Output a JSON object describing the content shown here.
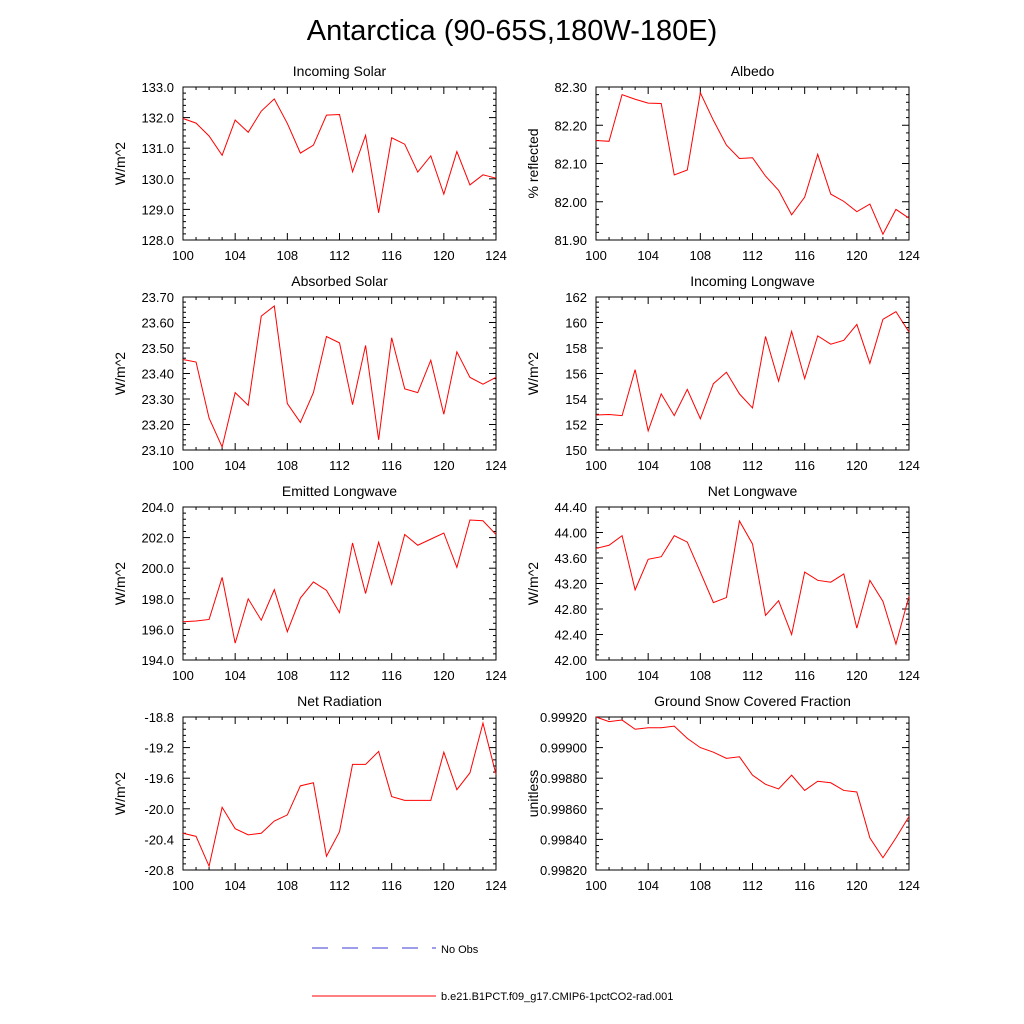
{
  "title": "Antarctica (90-65S,180W-180E)",
  "colors": {
    "series": "#ff0000",
    "obs": "#3b3bd6",
    "axis": "#000000"
  },
  "legend": {
    "obs_label": "No Obs",
    "model_label": "b.e21.B1PCT.f09_g17.CMIP6-1pctCO2-rad.001"
  },
  "chart_data": [
    {
      "type": "line",
      "title": "Incoming Solar",
      "ylabel": "W/m^2",
      "xlim": [
        100,
        124
      ],
      "ylim": [
        128.0,
        133.0
      ],
      "xticks": [
        100,
        104,
        108,
        112,
        116,
        120,
        124
      ],
      "xtick_labels": [
        "100",
        "104",
        "108",
        "112",
        "116",
        "120",
        "124"
      ],
      "yticks": [
        128.0,
        129.0,
        130.0,
        131.0,
        132.0,
        133.0
      ],
      "ytick_labels": [
        "128.0",
        "129.0",
        "130.0",
        "131.0",
        "132.0",
        "133.0"
      ],
      "x": [
        100,
        101,
        102,
        103,
        104,
        105,
        106,
        107,
        108,
        109,
        110,
        111,
        112,
        113,
        114,
        115,
        116,
        117,
        118,
        119,
        120,
        121,
        122,
        123,
        124
      ],
      "series": [
        {
          "name": "b.e21.B1PCT.f09_g17.CMIP6-1pctCO2-rad.001",
          "values": [
            131.97,
            131.82,
            131.4,
            130.77,
            131.92,
            131.52,
            132.21,
            132.61,
            131.81,
            130.84,
            131.1,
            132.08,
            132.1,
            130.23,
            131.42,
            128.89,
            131.34,
            131.13,
            130.22,
            130.75,
            129.5,
            130.89,
            129.8,
            130.13,
            130.02
          ]
        }
      ]
    },
    {
      "type": "line",
      "title": "Albedo",
      "ylabel": "% reflected",
      "xlim": [
        100,
        124
      ],
      "ylim": [
        81.9,
        82.3
      ],
      "xticks": [
        100,
        104,
        108,
        112,
        116,
        120,
        124
      ],
      "xtick_labels": [
        "100",
        "104",
        "108",
        "112",
        "116",
        "120",
        "124"
      ],
      "yticks": [
        81.9,
        82.0,
        82.1,
        82.2,
        82.3
      ],
      "ytick_labels": [
        "81.90",
        "82.00",
        "82.10",
        "82.20",
        "82.30"
      ],
      "x": [
        100,
        101,
        102,
        103,
        104,
        105,
        106,
        107,
        108,
        109,
        110,
        111,
        112,
        113,
        114,
        115,
        116,
        117,
        118,
        119,
        120,
        121,
        122,
        123,
        124
      ],
      "series": [
        {
          "name": "b.e21.B1PCT.f09_g17.CMIP6-1pctCO2-rad.001",
          "values": [
            82.16,
            82.158,
            82.28,
            82.268,
            82.258,
            82.257,
            82.07,
            82.083,
            82.285,
            82.213,
            82.148,
            82.113,
            82.115,
            82.067,
            82.03,
            81.966,
            82.012,
            82.124,
            82.02,
            82.001,
            81.974,
            81.994,
            81.915,
            81.98,
            81.957
          ]
        }
      ]
    },
    {
      "type": "line",
      "title": "Absorbed Solar",
      "ylabel": "W/m^2",
      "xlim": [
        100,
        124
      ],
      "ylim": [
        23.1,
        23.7
      ],
      "xticks": [
        100,
        104,
        108,
        112,
        116,
        120,
        124
      ],
      "xtick_labels": [
        "100",
        "104",
        "108",
        "112",
        "116",
        "120",
        "124"
      ],
      "yticks": [
        23.1,
        23.2,
        23.3,
        23.4,
        23.5,
        23.6,
        23.7
      ],
      "ytick_labels": [
        "23.10",
        "23.20",
        "23.30",
        "23.40",
        "23.50",
        "23.60",
        "23.70"
      ],
      "x": [
        100,
        101,
        102,
        103,
        104,
        105,
        106,
        107,
        108,
        109,
        110,
        111,
        112,
        113,
        114,
        115,
        116,
        117,
        118,
        119,
        120,
        121,
        122,
        123,
        124
      ],
      "series": [
        {
          "name": "b.e21.B1PCT.f09_g17.CMIP6-1pctCO2-rad.001",
          "values": [
            23.455,
            23.445,
            23.225,
            23.112,
            23.325,
            23.275,
            23.625,
            23.665,
            23.282,
            23.208,
            23.325,
            23.545,
            23.52,
            23.278,
            23.51,
            23.14,
            23.54,
            23.34,
            23.325,
            23.452,
            23.24,
            23.485,
            23.385,
            23.358,
            23.385
          ]
        }
      ]
    },
    {
      "type": "line",
      "title": "Incoming Longwave",
      "ylabel": "W/m^2",
      "xlim": [
        100,
        124
      ],
      "ylim": [
        150,
        162
      ],
      "xticks": [
        100,
        104,
        108,
        112,
        116,
        120,
        124
      ],
      "xtick_labels": [
        "100",
        "104",
        "108",
        "112",
        "116",
        "120",
        "124"
      ],
      "yticks": [
        150,
        152,
        154,
        156,
        158,
        160,
        162
      ],
      "ytick_labels": [
        "150",
        "152",
        "154",
        "156",
        "158",
        "160",
        "162"
      ],
      "x": [
        100,
        101,
        102,
        103,
        104,
        105,
        106,
        107,
        108,
        109,
        110,
        111,
        112,
        113,
        114,
        115,
        116,
        117,
        118,
        119,
        120,
        121,
        122,
        123,
        124
      ],
      "series": [
        {
          "name": "b.e21.B1PCT.f09_g17.CMIP6-1pctCO2-rad.001",
          "values": [
            152.75,
            152.78,
            152.7,
            156.3,
            151.5,
            154.4,
            152.7,
            154.75,
            152.45,
            155.2,
            156.1,
            154.4,
            153.3,
            158.9,
            155.4,
            159.3,
            155.6,
            158.95,
            158.3,
            158.6,
            159.85,
            156.8,
            160.25,
            160.85,
            159.25
          ]
        }
      ]
    },
    {
      "type": "line",
      "title": "Emitted Longwave",
      "ylabel": "W/m^2",
      "xlim": [
        100,
        124
      ],
      "ylim": [
        194.0,
        204.0
      ],
      "xticks": [
        100,
        104,
        108,
        112,
        116,
        120,
        124
      ],
      "xtick_labels": [
        "100",
        "104",
        "108",
        "112",
        "116",
        "120",
        "124"
      ],
      "yticks": [
        194.0,
        196.0,
        198.0,
        200.0,
        202.0,
        204.0
      ],
      "ytick_labels": [
        "194.0",
        "196.0",
        "198.0",
        "200.0",
        "202.0",
        "204.0"
      ],
      "x": [
        100,
        101,
        102,
        103,
        104,
        105,
        106,
        107,
        108,
        109,
        110,
        111,
        112,
        113,
        114,
        115,
        116,
        117,
        118,
        119,
        120,
        121,
        122,
        123,
        124
      ],
      "series": [
        {
          "name": "b.e21.B1PCT.f09_g17.CMIP6-1pctCO2-rad.001",
          "values": [
            196.5,
            196.55,
            196.65,
            199.4,
            195.1,
            198.0,
            196.6,
            198.6,
            195.85,
            198.05,
            199.1,
            198.55,
            197.1,
            201.65,
            198.35,
            201.7,
            198.95,
            202.2,
            201.5,
            201.9,
            202.3,
            200.05,
            203.15,
            203.1,
            202.2
          ]
        }
      ]
    },
    {
      "type": "line",
      "title": "Net Longwave",
      "ylabel": "W/m^2",
      "xlim": [
        100,
        124
      ],
      "ylim": [
        42.0,
        44.4
      ],
      "xticks": [
        100,
        104,
        108,
        112,
        116,
        120,
        124
      ],
      "xtick_labels": [
        "100",
        "104",
        "108",
        "112",
        "116",
        "120",
        "124"
      ],
      "yticks": [
        42.0,
        42.4,
        42.8,
        43.2,
        43.6,
        44.0,
        44.4
      ],
      "ytick_labels": [
        "42.00",
        "42.40",
        "42.80",
        "43.20",
        "43.60",
        "44.00",
        "44.40"
      ],
      "x": [
        100,
        101,
        102,
        103,
        104,
        105,
        106,
        107,
        108,
        109,
        110,
        111,
        112,
        113,
        114,
        115,
        116,
        117,
        118,
        119,
        120,
        121,
        122,
        123,
        124
      ],
      "series": [
        {
          "name": "b.e21.B1PCT.f09_g17.CMIP6-1pctCO2-rad.001",
          "values": [
            43.75,
            43.8,
            43.95,
            43.1,
            43.58,
            43.62,
            43.95,
            43.85,
            43.38,
            42.9,
            42.98,
            44.18,
            43.82,
            42.7,
            42.93,
            42.4,
            43.38,
            43.25,
            43.22,
            43.35,
            42.5,
            43.25,
            42.92,
            42.25,
            43.0
          ]
        }
      ]
    },
    {
      "type": "line",
      "title": "Net Radiation",
      "ylabel": "W/m^2",
      "xlim": [
        100,
        124
      ],
      "ylim": [
        -20.8,
        -18.8
      ],
      "xticks": [
        100,
        104,
        108,
        112,
        116,
        120,
        124
      ],
      "xtick_labels": [
        "100",
        "104",
        "108",
        "112",
        "116",
        "120",
        "124"
      ],
      "yticks": [
        -20.8,
        -20.4,
        -20.0,
        -19.6,
        -19.2,
        -18.8
      ],
      "ytick_labels": [
        "-20.8",
        "-20.4",
        "-20.0",
        "-19.6",
        "-19.2",
        "-18.8"
      ],
      "x": [
        100,
        101,
        102,
        103,
        104,
        105,
        106,
        107,
        108,
        109,
        110,
        111,
        112,
        113,
        114,
        115,
        116,
        117,
        118,
        119,
        120,
        121,
        122,
        123,
        124
      ],
      "series": [
        {
          "name": "b.e21.B1PCT.f09_g17.CMIP6-1pctCO2-rad.001",
          "values": [
            -20.32,
            -20.36,
            -20.75,
            -19.98,
            -20.26,
            -20.34,
            -20.32,
            -20.16,
            -20.08,
            -19.7,
            -19.66,
            -20.62,
            -20.3,
            -19.42,
            -19.42,
            -19.25,
            -19.84,
            -19.89,
            -19.89,
            -19.89,
            -19.26,
            -19.75,
            -19.53,
            -18.88,
            -19.55
          ]
        }
      ]
    },
    {
      "type": "line",
      "title": "Ground Snow Covered Fraction",
      "ylabel": "unitless",
      "xlim": [
        100,
        124
      ],
      "ylim": [
        0.9982,
        0.9992
      ],
      "xticks": [
        100,
        104,
        108,
        112,
        116,
        120,
        124
      ],
      "xtick_labels": [
        "100",
        "104",
        "108",
        "112",
        "116",
        "120",
        "124"
      ],
      "yticks": [
        0.9982,
        0.9984,
        0.9986,
        0.9988,
        0.999,
        0.9992
      ],
      "ytick_labels": [
        "0.99820",
        "0.99840",
        "0.99860",
        "0.99880",
        "0.99900",
        "0.99920"
      ],
      "x": [
        100,
        101,
        102,
        103,
        104,
        105,
        106,
        107,
        108,
        109,
        110,
        111,
        112,
        113,
        114,
        115,
        116,
        117,
        118,
        119,
        120,
        121,
        122,
        123,
        124
      ],
      "series": [
        {
          "name": "b.e21.B1PCT.f09_g17.CMIP6-1pctCO2-rad.001",
          "values": [
            0.9992,
            0.99917,
            0.99918,
            0.99912,
            0.99913,
            0.99913,
            0.99914,
            0.99906,
            0.999,
            0.99897,
            0.99893,
            0.99894,
            0.99882,
            0.99876,
            0.99873,
            0.99882,
            0.99872,
            0.99878,
            0.99877,
            0.99872,
            0.99871,
            0.99841,
            0.99828,
            0.99841,
            0.99855
          ]
        }
      ]
    }
  ]
}
